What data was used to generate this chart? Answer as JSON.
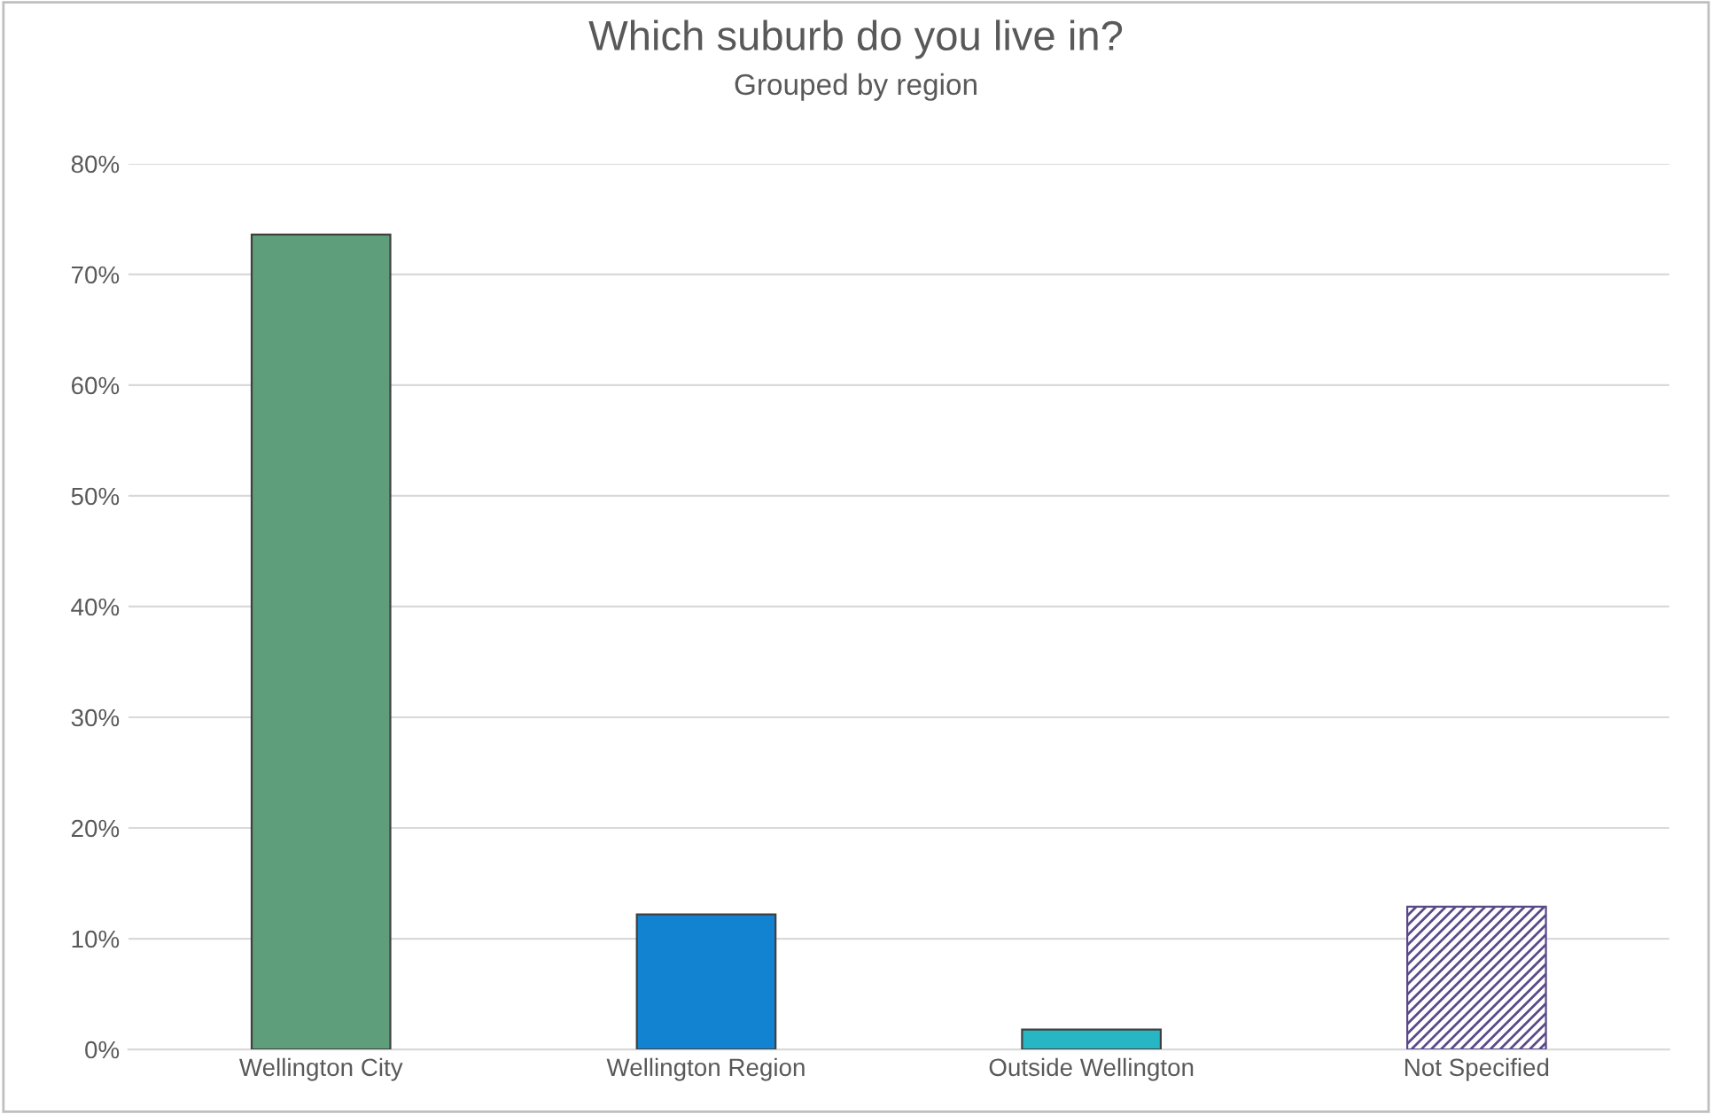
{
  "chart_data": {
    "type": "bar",
    "title": "Which suburb do you live in?",
    "subtitle": "Grouped by region",
    "categories": [
      "Wellington City",
      "Wellington Region",
      "Outside Wellington",
      "Not Specified"
    ],
    "values": [
      73.6,
      12.2,
      1.8,
      12.9
    ],
    "colors": [
      "#5f9e7a",
      "#1283d0",
      "#27b7c4",
      "#5b4a8a"
    ],
    "ylim": [
      0,
      80
    ],
    "yticks": [
      {
        "value": 0,
        "label": "0%"
      },
      {
        "value": 10,
        "label": "10%"
      },
      {
        "value": 20,
        "label": "20%"
      },
      {
        "value": 30,
        "label": "30%"
      },
      {
        "value": 40,
        "label": "40%"
      },
      {
        "value": 50,
        "label": "50%"
      },
      {
        "value": 60,
        "label": "60%"
      },
      {
        "value": 70,
        "label": "70%"
      },
      {
        "value": 80,
        "label": "80%"
      }
    ],
    "grid": "y",
    "legend": false
  }
}
